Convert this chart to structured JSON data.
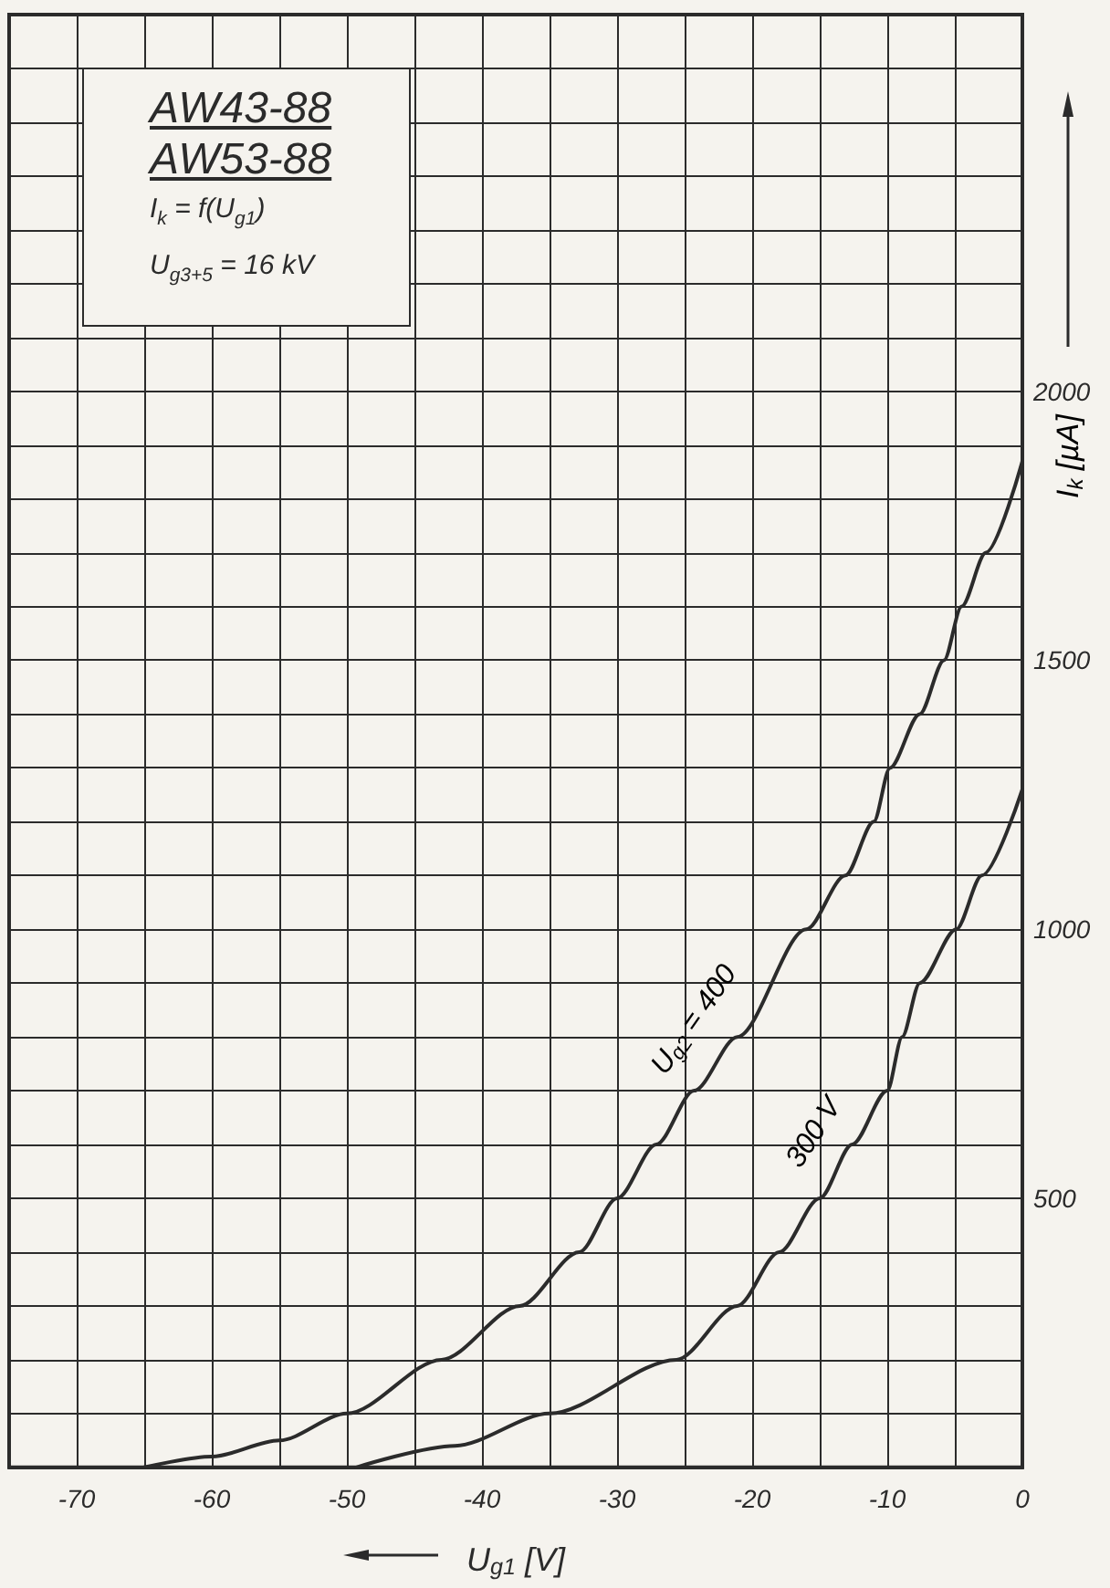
{
  "chart_data": {
    "type": "line",
    "title": "AW43-88",
    "subtitle": "AW53-88",
    "annotations": [
      "I$_{k}$ = f(U$_{g1}$)",
      "U$_{g3+5}$ = 16 kV"
    ],
    "xlabel": "U$_{g1}$ [V]",
    "ylabel": "I$_{k}$ [µA]",
    "xlim": [
      -75,
      0
    ],
    "xticks": [
      {
        "value": -75,
        "label": null
      },
      -70,
      {
        "value": -65,
        "label": null
      },
      -60,
      {
        "value": -55,
        "label": null
      },
      -50,
      {
        "value": -45,
        "label": null
      },
      -40,
      {
        "value": -35,
        "label": null
      },
      -30,
      {
        "value": -25,
        "label": null
      },
      -20,
      {
        "value": -15,
        "label": null
      },
      -10,
      {
        "value": -5,
        "label": null
      },
      0
    ],
    "ylim": [
      0,
      2700
    ],
    "yticks": [
      {
        "value": 0,
        "label": null
      },
      {
        "value": 100,
        "label": null
      },
      {
        "value": 200,
        "label": null
      },
      {
        "value": 300,
        "label": null
      },
      {
        "value": 400,
        "label": null
      },
      500,
      {
        "value": 600,
        "label": null
      },
      {
        "value": 700,
        "label": null
      },
      {
        "value": 800,
        "label": null
      },
      {
        "value": 900,
        "label": null
      },
      1000,
      {
        "value": 1100,
        "label": null
      },
      {
        "value": 1200,
        "label": null
      },
      {
        "value": 1300,
        "label": null
      },
      {
        "value": 1400,
        "label": null
      },
      1500,
      {
        "value": 1600,
        "label": null
      },
      {
        "value": 1700,
        "label": null
      },
      {
        "value": 1800,
        "label": null
      },
      {
        "value": 1900,
        "label": null
      },
      2000,
      {
        "value": 2100,
        "label": null
      },
      {
        "value": 2200,
        "label": null
      },
      {
        "value": 2300,
        "label": null
      },
      {
        "value": 2400,
        "label": null
      },
      {
        "value": 2500,
        "label": null
      },
      {
        "value": 2600,
        "label": null
      },
      {
        "value": 2700,
        "label": null
      }
    ],
    "grid": true,
    "legend": false,
    "marker": "none",
    "line_style": "solid",
    "series": [
      {
        "name": "U$_{g2}$ = 400",
        "color": "#2b2b2b",
        "x": [
          -65,
          -60,
          -55,
          -50,
          -43,
          -37.2,
          -32.8,
          -30,
          -27.1,
          -24.3,
          -21.1,
          -16,
          -13.1,
          -11,
          -9.8,
          -7.6,
          -5.8,
          -4.5,
          -2.7,
          0
        ],
        "values": [
          0,
          20,
          50,
          100,
          200,
          300,
          400,
          500,
          600,
          700,
          800,
          1000,
          1100,
          1200,
          1300,
          1400,
          1500,
          1600,
          1700,
          1870
        ]
      },
      {
        "name": "300 V",
        "color": "#2b2b2b",
        "x": [
          -49.3,
          -42,
          -35,
          -25.6,
          -21.1,
          -18,
          -15,
          -12.6,
          -10,
          -8.9,
          -7.6,
          -4.9,
          -3,
          0
        ],
        "values": [
          0,
          40,
          100,
          200,
          300,
          400,
          500,
          600,
          700,
          800,
          900,
          1000,
          1100,
          1260
        ]
      }
    ]
  }
}
